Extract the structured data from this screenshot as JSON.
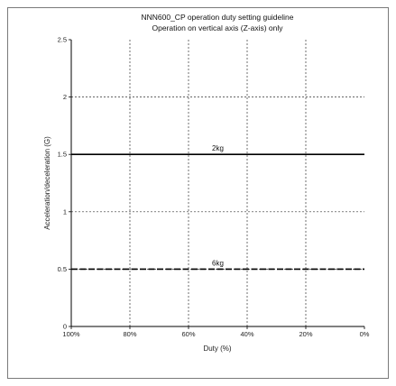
{
  "chart_data": {
    "type": "line",
    "title": "NNN600_CP operation duty setting guideline",
    "subtitle": "Operation on vertical axis (Z-axis) only",
    "xlabel": "Duty (%)",
    "ylabel": "Acceleration/deceleration (G)",
    "x_reversed": true,
    "xlim": [
      0,
      100
    ],
    "ylim": [
      0,
      2.5
    ],
    "x_ticks": [
      100,
      80,
      60,
      40,
      20,
      0
    ],
    "x_tick_labels": [
      "100%",
      "80%",
      "60%",
      "40%",
      "20%",
      "0%"
    ],
    "y_ticks": [
      0,
      0.5,
      1,
      1.5,
      2,
      2.5
    ],
    "y_tick_labels": [
      "0",
      "0.5",
      "1",
      "1.5",
      "2",
      "2.5"
    ],
    "grid": "dashed",
    "series": [
      {
        "name": "2kg",
        "x": [
          100,
          0
        ],
        "y": [
          1.5,
          1.5
        ],
        "style": "solid",
        "color": "#000000"
      },
      {
        "name": "6kg",
        "x": [
          100,
          0
        ],
        "y": [
          0.5,
          0.5
        ],
        "style": "dashed",
        "color": "#000000"
      }
    ]
  }
}
